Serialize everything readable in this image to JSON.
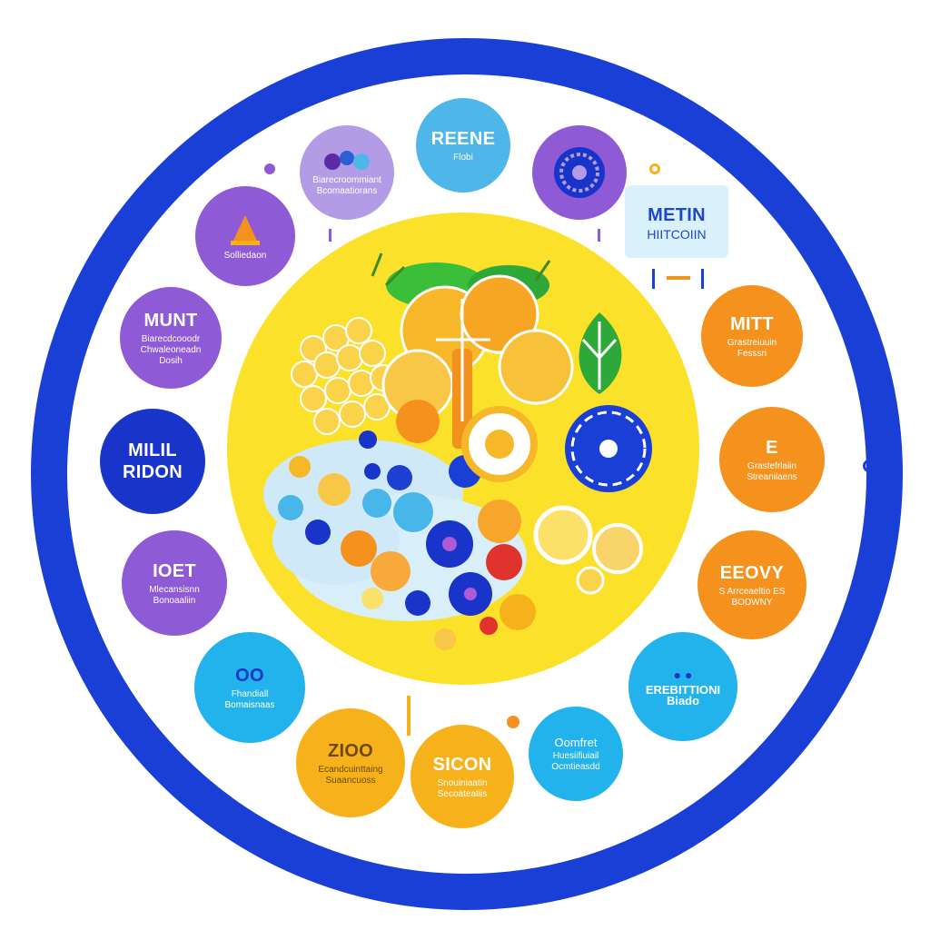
{
  "colors": {
    "ring": "#1a3fd6",
    "center": "#fbe12a",
    "purple": "#8f5ad6",
    "navy": "#1834c9",
    "sky": "#4fb6ea",
    "orange": "#f5921d",
    "amber": "#f7b21b"
  },
  "nodes": [
    {
      "title": "",
      "sub": "Biarecroommiant Bcomaatiorans",
      "icon": "berries-icon"
    },
    {
      "title": "REENE",
      "sub": "Flobi"
    },
    {
      "title": "",
      "sub": "",
      "icon": "flower-icon"
    },
    {
      "title": "METIN",
      "sub": "HIITCOIIN"
    },
    {
      "title": "",
      "sub": "Solliedaon",
      "icon": "cone-icon"
    },
    {
      "title": "MUNT",
      "sub": "Biarecdcooodr Chwaleoneadn Dosih"
    },
    {
      "title": "MITT",
      "sub": "Grastreiuuin Fesssri"
    },
    {
      "title": "MILIL",
      "sub": "RIDON"
    },
    {
      "title": "E",
      "sub": "Grastefrlaiin Streaniiaens"
    },
    {
      "title": "IOET",
      "sub": "Mlecansisnn Bonoaaliin"
    },
    {
      "title": "EEOVY",
      "sub": "S Arrceaeltio ES BODWNY"
    },
    {
      "title": "OO",
      "sub": "Fhandiall Bomaisnaas"
    },
    {
      "title": "",
      "sub": "EREBITTIONI Biado",
      "icon": "dots-icon"
    },
    {
      "title": "ZIOO",
      "sub": "Ecandcuinttaing Suaancuoss"
    },
    {
      "title": "SICON",
      "sub": "Snouiniaatin Secoateatiis"
    },
    {
      "title": "Oomfret",
      "sub": "Huesiifiuiail Ocmtieasdd"
    }
  ]
}
